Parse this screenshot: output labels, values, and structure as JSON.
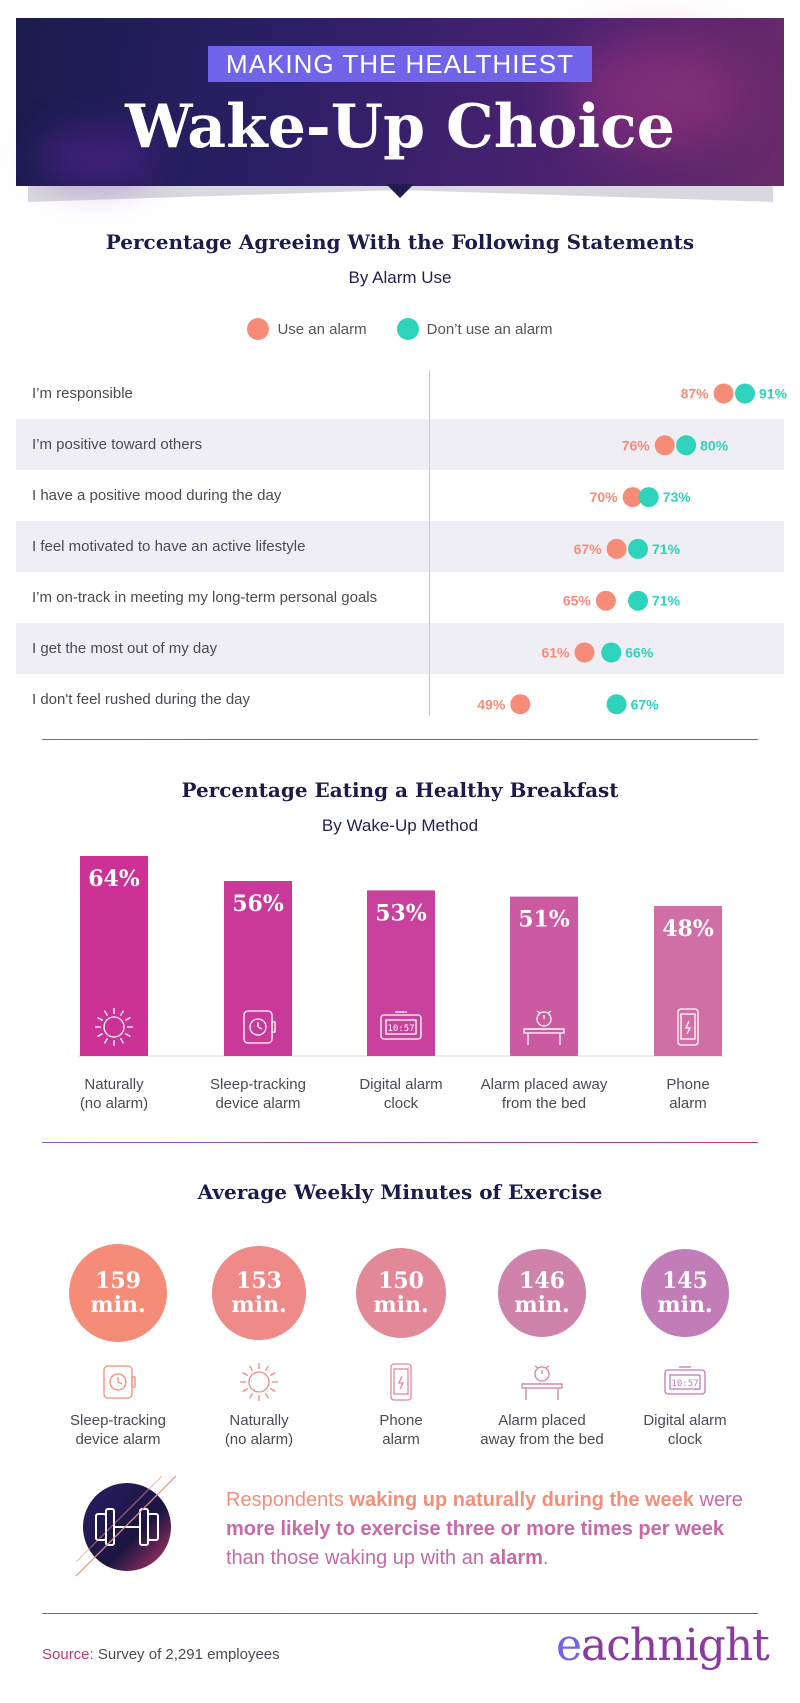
{
  "header": {
    "kicker": "MAKING THE HEALTHIEST",
    "title": "Wake-Up Choice"
  },
  "colors": {
    "alarm": "#f58c78",
    "no_alarm": "#2ed3bb",
    "navy": "#1b1c4a"
  },
  "chart_data": [
    {
      "type": "dumbbell",
      "title": "Percentage Agreeing With the Following Statements",
      "subtitle": "By Alarm Use",
      "legend": [
        "Use an alarm",
        "Don’t use an alarm"
      ],
      "categories": [
        "I’m responsible",
        "I’m positive toward others",
        "I have a positive mood during the day",
        "I feel motivated to have an active lifestyle",
        "I’m on-track in meeting my long-term personal goals",
        "I get the most out of my day",
        "I don't feel rushed during the day"
      ],
      "series": [
        {
          "name": "Use an alarm",
          "values": [
            87,
            76,
            70,
            67,
            65,
            61,
            49
          ],
          "labels": [
            "87%",
            "76%",
            "70%",
            "67%",
            "65%",
            "61%",
            "49%"
          ]
        },
        {
          "name": "Don’t use an alarm",
          "values": [
            91,
            80,
            73,
            71,
            71,
            66,
            67
          ],
          "labels": [
            "91%",
            "80%",
            "73%",
            "71%",
            "71%",
            "66%",
            "67%"
          ]
        }
      ]
    },
    {
      "type": "bar",
      "title": "Percentage Eating a Healthy Breakfast",
      "subtitle": "By Wake-Up Method",
      "categories": [
        "Naturally\n(no alarm)",
        "Sleep-tracking\ndevice alarm",
        "Digital alarm\nclock",
        "Alarm placed away\nfrom the bed",
        "Phone\nalarm"
      ],
      "values": [
        64,
        56,
        53,
        51,
        48
      ],
      "labels": [
        "64%",
        "56%",
        "53%",
        "51%",
        "48%"
      ],
      "icons": [
        "sun-icon",
        "smartwatch-icon",
        "digital-clock-icon",
        "alarm-table-icon",
        "phone-icon"
      ],
      "clock_text": "10:57",
      "bar_colors": [
        "#cc3296",
        "#c8399a",
        "#c8419c",
        "#cc5aa0",
        "#d06ea6"
      ],
      "ylim": [
        0,
        64
      ]
    },
    {
      "type": "bubble",
      "title": "Average Weekly Minutes of Exercise",
      "categories": [
        "Sleep-tracking\ndevice alarm",
        "Naturally\n(no alarm)",
        "Phone\nalarm",
        "Alarm placed\naway from the bed",
        "Digital alarm\nclock"
      ],
      "values": [
        159,
        153,
        150,
        146,
        145
      ],
      "labels": [
        "159\nmin.",
        "153\nmin.",
        "150\nmin.",
        "146\nmin.",
        "145\nmin."
      ],
      "icons": [
        "smartwatch-icon",
        "sun-icon",
        "phone-icon",
        "alarm-table-icon",
        "digital-clock-icon"
      ],
      "clock_text": "10:57",
      "colors": [
        "#f58c78",
        "#ee8a88",
        "#e38898",
        "#d083aa",
        "#c27cb8"
      ]
    }
  ],
  "callout": {
    "p1": "Respondents ",
    "b1": "waking up naturally during the week",
    "p2": " were ",
    "b2": "more likely to exercise three or more times per week",
    "p3": " than those waking up with an ",
    "b3": "alarm",
    "p4": "."
  },
  "footer": {
    "source_label": "Source:",
    "source_text": " Survey of 2,291 employees",
    "logo_e": "e",
    "logo_rest": "achnight"
  }
}
